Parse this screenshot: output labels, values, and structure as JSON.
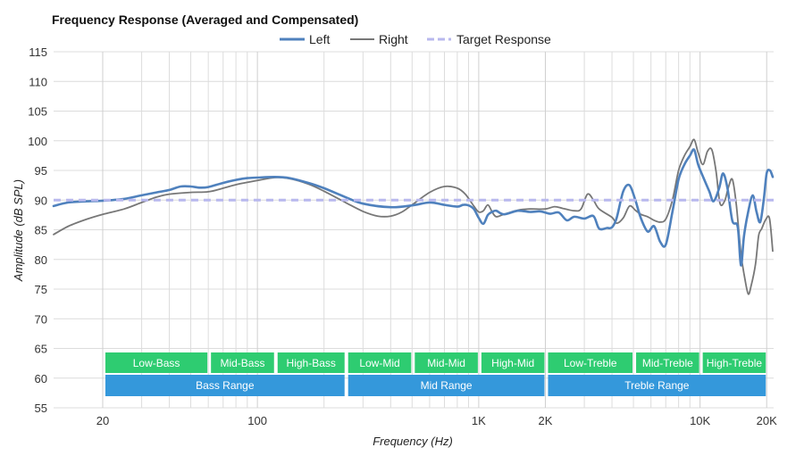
{
  "chart_data": {
    "type": "line",
    "title": "Frequency Response (Averaged and Compensated)",
    "xlabel": "Frequency (Hz)",
    "ylabel": "Amplitude (dB SPL)",
    "x_scale": "log",
    "xlim": [
      12,
      21500
    ],
    "ylim": [
      55,
      115
    ],
    "y_ticks": [
      55,
      60,
      65,
      70,
      75,
      80,
      85,
      90,
      95,
      100,
      105,
      110,
      115
    ],
    "x_ticks": [
      {
        "value": 20,
        "label": "20"
      },
      {
        "value": 100,
        "label": "100"
      },
      {
        "value": 1000,
        "label": "1K"
      },
      {
        "value": 2000,
        "label": "2K"
      },
      {
        "value": 10000,
        "label": "10K"
      },
      {
        "value": 20000,
        "label": "20K"
      }
    ],
    "x_minor_gridlines": [
      30,
      40,
      50,
      60,
      70,
      80,
      90,
      200,
      300,
      400,
      500,
      600,
      700,
      800,
      900,
      3000,
      4000,
      5000,
      6000,
      7000,
      8000,
      9000
    ],
    "grid": true,
    "legend_position": "top-center",
    "series": [
      {
        "name": "Left",
        "color": "#4f81bd",
        "points": [
          [
            12,
            89
          ],
          [
            14,
            89.6
          ],
          [
            17,
            89.8
          ],
          [
            20,
            89.9
          ],
          [
            25,
            90.2
          ],
          [
            30,
            90.8
          ],
          [
            35,
            91.3
          ],
          [
            40,
            91.7
          ],
          [
            45,
            92.3
          ],
          [
            50,
            92.3
          ],
          [
            55,
            92.1
          ],
          [
            60,
            92.2
          ],
          [
            70,
            92.9
          ],
          [
            80,
            93.4
          ],
          [
            90,
            93.7
          ],
          [
            100,
            93.8
          ],
          [
            120,
            93.9
          ],
          [
            140,
            93.7
          ],
          [
            170,
            92.9
          ],
          [
            200,
            92
          ],
          [
            250,
            90.5
          ],
          [
            300,
            89.4
          ],
          [
            400,
            88.8
          ],
          [
            500,
            89.1
          ],
          [
            600,
            89.6
          ],
          [
            700,
            89.2
          ],
          [
            800,
            88.9
          ],
          [
            850,
            89.2
          ],
          [
            900,
            89.1
          ],
          [
            950,
            88.5
          ],
          [
            1000,
            87
          ],
          [
            1050,
            86
          ],
          [
            1100,
            87.5
          ],
          [
            1150,
            88
          ],
          [
            1200,
            88.2
          ],
          [
            1300,
            87.6
          ],
          [
            1500,
            88.2
          ],
          [
            1700,
            88
          ],
          [
            1900,
            88.1
          ],
          [
            2100,
            87.7
          ],
          [
            2300,
            87.9
          ],
          [
            2500,
            86.6
          ],
          [
            2700,
            87.2
          ],
          [
            3000,
            86.9
          ],
          [
            3300,
            87.3
          ],
          [
            3500,
            85.2
          ],
          [
            3800,
            85.3
          ],
          [
            4000,
            85.4
          ],
          [
            4200,
            87
          ],
          [
            4500,
            91.5
          ],
          [
            4800,
            92.5
          ],
          [
            5100,
            90
          ],
          [
            5400,
            87
          ],
          [
            5800,
            84.7
          ],
          [
            6200,
            85.6
          ],
          [
            6600,
            83
          ],
          [
            7000,
            82.5
          ],
          [
            7500,
            88
          ],
          [
            8000,
            93.5
          ],
          [
            8500,
            96
          ],
          [
            9000,
            97.5
          ],
          [
            9400,
            98.5
          ],
          [
            9800,
            96
          ],
          [
            10300,
            94
          ],
          [
            11000,
            91.5
          ],
          [
            11500,
            89.8
          ],
          [
            12200,
            92
          ],
          [
            12700,
            94.5
          ],
          [
            13300,
            92
          ],
          [
            14000,
            86.5
          ],
          [
            14800,
            85.5
          ],
          [
            15300,
            79
          ],
          [
            15800,
            84
          ],
          [
            16500,
            88
          ],
          [
            17300,
            90.8
          ],
          [
            18000,
            88
          ],
          [
            18700,
            86.3
          ],
          [
            19400,
            90
          ],
          [
            20000,
            94.5
          ],
          [
            20700,
            95
          ],
          [
            21300,
            93.9
          ]
        ]
      },
      {
        "name": "Right",
        "color": "#777777",
        "points": [
          [
            12,
            84.2
          ],
          [
            14,
            85.6
          ],
          [
            17,
            86.8
          ],
          [
            20,
            87.6
          ],
          [
            25,
            88.5
          ],
          [
            30,
            89.6
          ],
          [
            35,
            90.5
          ],
          [
            40,
            91
          ],
          [
            50,
            91.3
          ],
          [
            60,
            91.4
          ],
          [
            70,
            92
          ],
          [
            80,
            92.6
          ],
          [
            100,
            93.3
          ],
          [
            120,
            93.8
          ],
          [
            140,
            93.6
          ],
          [
            170,
            92.7
          ],
          [
            200,
            91.5
          ],
          [
            250,
            89.6
          ],
          [
            300,
            88.1
          ],
          [
            350,
            87.3
          ],
          [
            400,
            87.3
          ],
          [
            450,
            88
          ],
          [
            500,
            89.2
          ],
          [
            600,
            91.3
          ],
          [
            700,
            92.3
          ],
          [
            800,
            92
          ],
          [
            870,
            91
          ],
          [
            950,
            89
          ],
          [
            1000,
            88
          ],
          [
            1050,
            88.2
          ],
          [
            1100,
            89.2
          ],
          [
            1150,
            88
          ],
          [
            1200,
            87.2
          ],
          [
            1300,
            87.6
          ],
          [
            1500,
            88.3
          ],
          [
            1700,
            88.5
          ],
          [
            2000,
            88.5
          ],
          [
            2200,
            88.9
          ],
          [
            2400,
            88.6
          ],
          [
            2700,
            88.2
          ],
          [
            2900,
            88.5
          ],
          [
            3100,
            91
          ],
          [
            3300,
            90
          ],
          [
            3500,
            88.5
          ],
          [
            4000,
            87.1
          ],
          [
            4200,
            86.1
          ],
          [
            4500,
            87
          ],
          [
            4800,
            89
          ],
          [
            5100,
            88.3
          ],
          [
            5400,
            87.6
          ],
          [
            5800,
            87.2
          ],
          [
            6200,
            86.6
          ],
          [
            6600,
            86.3
          ],
          [
            7000,
            86.8
          ],
          [
            7500,
            90
          ],
          [
            8000,
            95
          ],
          [
            8500,
            97.5
          ],
          [
            9000,
            99
          ],
          [
            9400,
            100.2
          ],
          [
            9800,
            98
          ],
          [
            10300,
            96
          ],
          [
            10800,
            98.2
          ],
          [
            11300,
            98.5
          ],
          [
            11800,
            95
          ],
          [
            12300,
            89.5
          ],
          [
            12900,
            89.8
          ],
          [
            13400,
            92
          ],
          [
            14000,
            93.5
          ],
          [
            14600,
            89
          ],
          [
            15300,
            81
          ],
          [
            15900,
            77
          ],
          [
            16500,
            74.2
          ],
          [
            17000,
            75.5
          ],
          [
            17800,
            79.2
          ],
          [
            18400,
            84
          ],
          [
            19000,
            85.2
          ],
          [
            19800,
            86.7
          ],
          [
            20600,
            86.9
          ],
          [
            21300,
            81.4
          ]
        ]
      },
      {
        "name": "Target Response",
        "color": "#b8b8ee",
        "dashed": true,
        "points": [
          [
            12,
            90
          ],
          [
            21500,
            90
          ]
        ]
      }
    ],
    "annotations": {
      "sub_ranges": [
        {
          "label": "Low-Bass",
          "start": 20,
          "end": 60
        },
        {
          "label": "Mid-Bass",
          "start": 60,
          "end": 120
        },
        {
          "label": "High-Bass",
          "start": 120,
          "end": 250
        },
        {
          "label": "Low-Mid",
          "start": 250,
          "end": 500
        },
        {
          "label": "Mid-Mid",
          "start": 500,
          "end": 1000
        },
        {
          "label": "High-Mid",
          "start": 1000,
          "end": 2000
        },
        {
          "label": "Low-Treble",
          "start": 2000,
          "end": 5000
        },
        {
          "label": "Mid-Treble",
          "start": 5000,
          "end": 10000
        },
        {
          "label": "High-Treble",
          "start": 10000,
          "end": 20000
        }
      ],
      "ranges": [
        {
          "label": "Bass Range",
          "start": 20,
          "end": 250
        },
        {
          "label": "Mid Range",
          "start": 250,
          "end": 2000
        },
        {
          "label": "Treble Range",
          "start": 2000,
          "end": 20000
        }
      ],
      "sub_range_color": "#2ecc71",
      "range_color": "#3498db"
    }
  }
}
